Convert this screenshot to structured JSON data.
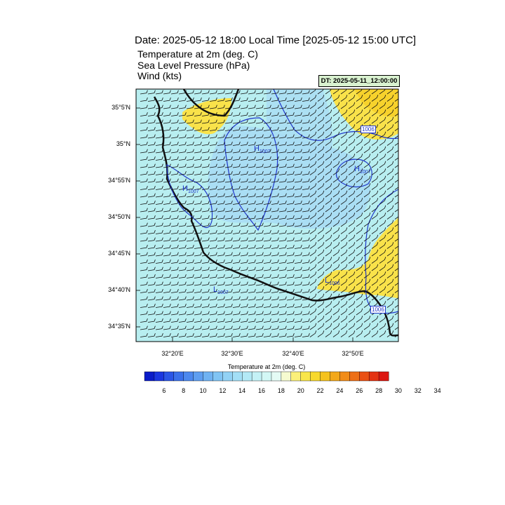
{
  "header": {
    "title": "Date: 2025-05-12  18:00 Local Time [2025-05-12  15:00 UTC]",
    "lines": [
      "Temperature at 2m   (deg. C)",
      "Sea Level Pressure   (hPa)",
      "Wind   (kts)"
    ],
    "dt_label": "DT: 2025-05-11_12:00:00"
  },
  "map": {
    "lat_labels": [
      "35°5'N",
      "35°N",
      "34°55'N",
      "34°50'N",
      "34°45'N",
      "34°40'N",
      "34°35'N"
    ],
    "lon_labels": [
      "32°20'E",
      "32°30'E",
      "32°40'E",
      "32°50'E"
    ],
    "pressure_labels": [
      {
        "text": "H",
        "sub": "1007"
      },
      {
        "text": "H",
        "sub": "1007"
      },
      {
        "text": "H",
        "sub": "1007"
      },
      {
        "text": "L",
        "sub": "1006"
      },
      {
        "text": "L",
        "sub": "1007"
      }
    ],
    "contour_box_labels": [
      "1006",
      "1006"
    ],
    "colors": {
      "land_low": "#b6eef0",
      "land_mid": "#a9ddf4",
      "warm": "#f9e64a",
      "warm2": "#fad72a",
      "contour": "#1f36c9",
      "coast": "#111111"
    }
  },
  "colorbar": {
    "title": "Temperature at 2m  (deg. C)",
    "tick_labels": [
      "6",
      "8",
      "10",
      "12",
      "14",
      "16",
      "18",
      "20",
      "22",
      "24",
      "26",
      "28",
      "30",
      "32",
      "34"
    ],
    "colors": [
      "#0a1cc8",
      "#1a36e0",
      "#2a55e6",
      "#3a70ea",
      "#4c88ee",
      "#5e9ef0",
      "#6fb2f2",
      "#80c4f4",
      "#92d2f5",
      "#a3dff6",
      "#b3e9f6",
      "#c4f1f6",
      "#d3f7f5",
      "#e4fbf5",
      "#f6fbd0",
      "#fbf07a",
      "#f9e64a",
      "#f7d92d",
      "#f5c21e",
      "#f3a81a",
      "#f18c18",
      "#ee6f16",
      "#ea5014",
      "#e43212",
      "#dc1610"
    ]
  }
}
